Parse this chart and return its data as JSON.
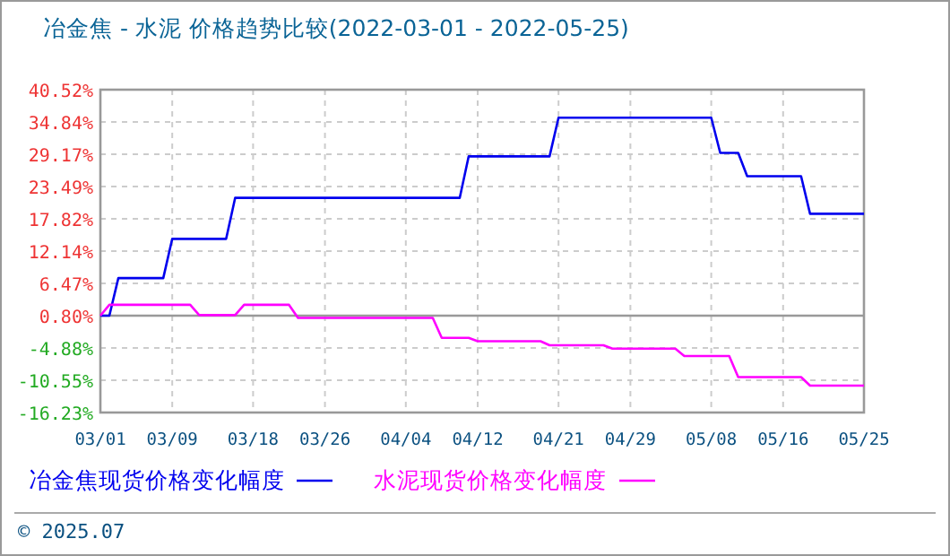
{
  "chart_data": {
    "type": "line",
    "title": "冶金焦 - 水泥 价格趋势比较(2022-03-01 - 2022-05-25)",
    "xlim": [
      "2022-03-01",
      "2022-05-25"
    ],
    "xticks": [
      {
        "value": "2022-03-01",
        "label": "03/01"
      },
      {
        "value": "2022-03-09",
        "label": "03/09"
      },
      {
        "value": "2022-03-18",
        "label": "03/18"
      },
      {
        "value": "2022-03-26",
        "label": "03/26"
      },
      {
        "value": "2022-04-04",
        "label": "04/04"
      },
      {
        "value": "2022-04-12",
        "label": "04/12"
      },
      {
        "value": "2022-04-21",
        "label": "04/21"
      },
      {
        "value": "2022-04-29",
        "label": "04/29"
      },
      {
        "value": "2022-05-08",
        "label": "05/08"
      },
      {
        "value": "2022-05-16",
        "label": "05/16"
      },
      {
        "value": "2022-05-25",
        "label": "05/25"
      }
    ],
    "ylim": [
      -16.23,
      40.52
    ],
    "yticks": [
      {
        "value": -16.23,
        "label": "-16.23%"
      },
      {
        "value": -10.55,
        "label": "-10.55%"
      },
      {
        "value": -4.88,
        "label": "-4.88%"
      },
      {
        "value": 0.8,
        "label": "0.80%"
      },
      {
        "value": 6.47,
        "label": "6.47%"
      },
      {
        "value": 12.14,
        "label": "12.14%"
      },
      {
        "value": 17.82,
        "label": "17.82%"
      },
      {
        "value": 23.49,
        "label": "23.49%"
      },
      {
        "value": 29.17,
        "label": "29.17%"
      },
      {
        "value": 34.84,
        "label": "34.84%"
      },
      {
        "value": 40.52,
        "label": "40.52%"
      }
    ],
    "grid": true,
    "legend": "bottom",
    "marker": "none",
    "line_style": "solid",
    "ref_lines": [
      {
        "axis": "y",
        "value": 0.8,
        "color": "#999999"
      }
    ],
    "annotations": [
      "© 2025.07"
    ],
    "series": [
      {
        "name": "冶金焦现货价格变化幅度",
        "color": "#0000ee",
        "x": [
          "2022-03-01",
          "2022-03-02",
          "2022-03-03",
          "2022-03-08",
          "2022-03-09",
          "2022-03-15",
          "2022-03-16",
          "2022-04-10",
          "2022-04-11",
          "2022-04-20",
          "2022-04-21",
          "2022-05-08",
          "2022-05-09",
          "2022-05-11",
          "2022-05-12",
          "2022-05-18",
          "2022-05-19",
          "2022-05-25"
        ],
        "values": [
          0.8,
          0.8,
          7.4,
          7.4,
          14.3,
          14.3,
          21.5,
          21.5,
          28.8,
          28.8,
          35.6,
          35.6,
          29.4,
          29.4,
          25.3,
          25.3,
          18.7,
          18.7
        ]
      },
      {
        "name": "水泥现货价格变化幅度",
        "color": "#ff00ff",
        "x": [
          "2022-03-01",
          "2022-03-02",
          "2022-03-11",
          "2022-03-12",
          "2022-03-16",
          "2022-03-17",
          "2022-03-22",
          "2022-03-23",
          "2022-04-07",
          "2022-04-08",
          "2022-04-11",
          "2022-04-12",
          "2022-04-19",
          "2022-04-20",
          "2022-04-26",
          "2022-04-27",
          "2022-05-04",
          "2022-05-05",
          "2022-05-10",
          "2022-05-11",
          "2022-05-18",
          "2022-05-19",
          "2022-05-25"
        ],
        "values": [
          0.8,
          2.7,
          2.7,
          0.9,
          0.9,
          2.7,
          2.7,
          0.4,
          0.4,
          -3.1,
          -3.1,
          -3.7,
          -3.7,
          -4.4,
          -4.4,
          -5.0,
          -5.0,
          -6.3,
          -6.3,
          -10.0,
          -10.0,
          -11.5,
          -11.5
        ]
      }
    ]
  }
}
